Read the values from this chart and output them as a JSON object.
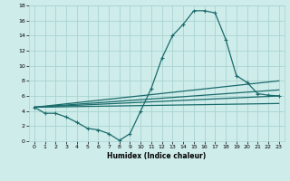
{
  "xlabel": "Humidex (Indice chaleur)",
  "background_color": "#ceecea",
  "grid_color": "#a8d4d0",
  "line_color": "#1a6b6b",
  "xlim": [
    -0.5,
    23.5
  ],
  "ylim": [
    0,
    18
  ],
  "x_ticks": [
    0,
    1,
    2,
    3,
    4,
    5,
    6,
    7,
    8,
    9,
    10,
    11,
    12,
    13,
    14,
    15,
    16,
    17,
    18,
    19,
    20,
    21,
    22,
    23
  ],
  "y_ticks": [
    0,
    2,
    4,
    6,
    8,
    10,
    12,
    14,
    16,
    18
  ],
  "main_x": [
    0,
    1,
    2,
    3,
    4,
    5,
    6,
    7,
    8,
    9,
    10,
    11,
    12,
    13,
    14,
    15,
    16,
    17,
    18,
    19,
    20,
    21,
    22,
    23
  ],
  "main_y": [
    4.5,
    3.7,
    3.7,
    3.2,
    2.5,
    1.7,
    1.5,
    1.0,
    0.1,
    1.0,
    4.0,
    7.0,
    11.0,
    14.0,
    15.5,
    17.3,
    17.3,
    17.0,
    13.5,
    8.7,
    7.8,
    6.3,
    6.1,
    6.0
  ],
  "fan_lines": [
    {
      "x": [
        0,
        23
      ],
      "y": [
        4.5,
        8.0
      ]
    },
    {
      "x": [
        0,
        23
      ],
      "y": [
        4.5,
        6.8
      ]
    },
    {
      "x": [
        0,
        23
      ],
      "y": [
        4.5,
        6.0
      ]
    },
    {
      "x": [
        0,
        23
      ],
      "y": [
        4.5,
        5.0
      ]
    }
  ]
}
